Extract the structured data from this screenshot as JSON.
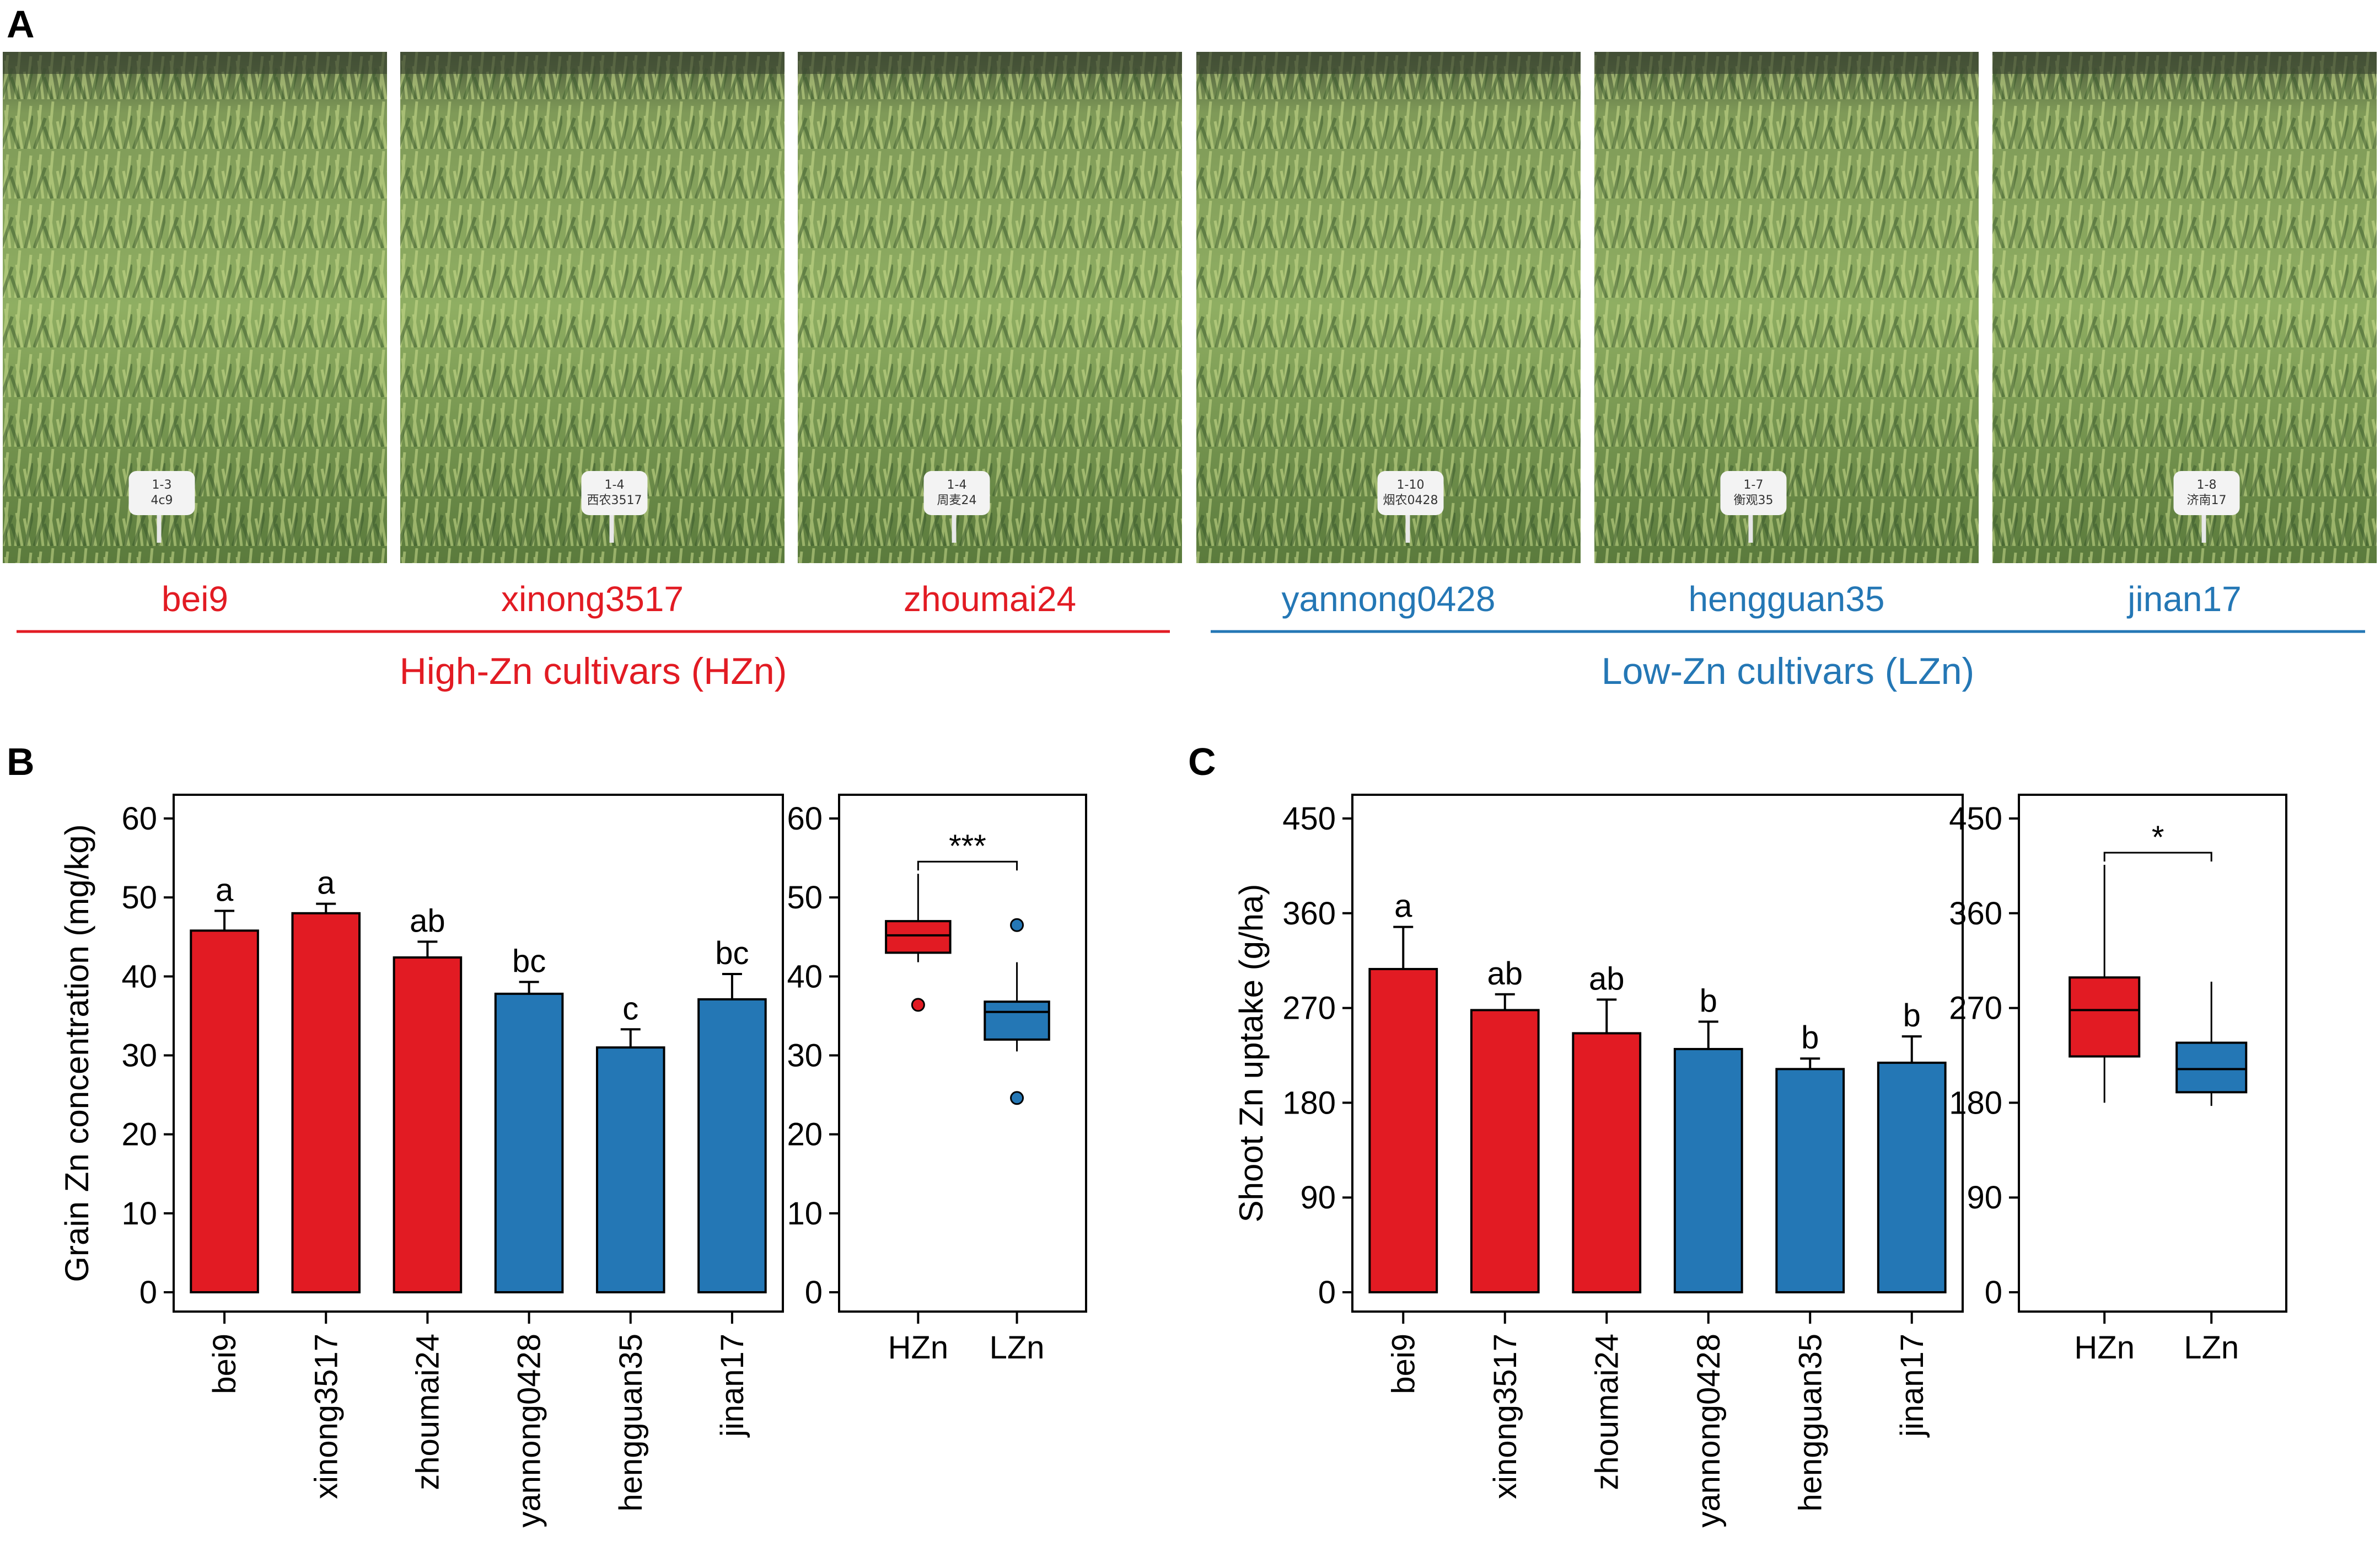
{
  "panels": {
    "A": "A",
    "B": "B",
    "C": "C"
  },
  "colors": {
    "hzn": "#e21b23",
    "lzn": "#2477b5",
    "axis": "#000000"
  },
  "photos": [
    {
      "cultivar": "bei9",
      "group": "hzn",
      "tag_lines": [
        "1-3",
        "4c9"
      ]
    },
    {
      "cultivar": "xinong3517",
      "group": "hzn",
      "tag_lines": [
        "1-4",
        "西农3517"
      ]
    },
    {
      "cultivar": "zhoumai24",
      "group": "hzn",
      "tag_lines": [
        "1-4",
        "周麦24"
      ]
    },
    {
      "cultivar": "yannong0428",
      "group": "lzn",
      "tag_lines": [
        "1-10",
        "烟农0428"
      ]
    },
    {
      "cultivar": "hengguan35",
      "group": "lzn",
      "tag_lines": [
        "1-7",
        "衡观35"
      ]
    },
    {
      "cultivar": "jinan17",
      "group": "lzn",
      "tag_lines": [
        "1-8",
        "济南17"
      ]
    }
  ],
  "groups": {
    "hzn_label": "High-Zn cultivars (HZn)",
    "lzn_label": "Low-Zn cultivars (LZn)"
  },
  "chart_data": [
    {
      "panel": "B",
      "type": "bar",
      "ylabel": "Grain Zn concentration (mg/kg)",
      "ylim": [
        0,
        60
      ],
      "yticks": [
        0,
        10,
        20,
        30,
        40,
        50,
        60
      ],
      "categories": [
        "bei9",
        "xinong3517",
        "zhoumai24",
        "yannong0428",
        "hengguan35",
        "jinan17"
      ],
      "values": [
        45.8,
        48.0,
        42.4,
        37.8,
        31.0,
        37.1
      ],
      "errors": [
        2.5,
        1.2,
        2.0,
        1.5,
        2.3,
        3.2
      ],
      "letters": [
        "a",
        "a",
        "ab",
        "bc",
        "c",
        "bc"
      ],
      "groups": [
        "hzn",
        "hzn",
        "hzn",
        "lzn",
        "lzn",
        "lzn"
      ]
    },
    {
      "panel": "B",
      "type": "box",
      "ylim": [
        0,
        60
      ],
      "yticks": [
        0,
        10,
        20,
        30,
        40,
        50,
        60
      ],
      "categories": [
        "HZn",
        "LZn"
      ],
      "boxes": [
        {
          "group": "hzn",
          "whisker_low": 41.8,
          "q1": 43.0,
          "median": 45.2,
          "q3": 47.0,
          "whisker_high": 53.0,
          "outliers": [
            36.4
          ]
        },
        {
          "group": "lzn",
          "whisker_low": 30.5,
          "q1": 32.0,
          "median": 35.5,
          "q3": 36.8,
          "whisker_high": 41.8,
          "outliers": [
            46.5,
            24.6
          ]
        }
      ],
      "significance": "***"
    },
    {
      "panel": "C",
      "type": "bar",
      "ylabel": "Shoot Zn uptake (g/ha)",
      "ylim": [
        0,
        450
      ],
      "yticks": [
        0,
        90,
        180,
        270,
        360,
        450
      ],
      "categories": [
        "bei9",
        "xinong3517",
        "zhoumai24",
        "yannong0428",
        "hengguan35",
        "jinan17"
      ],
      "values": [
        307,
        268,
        246,
        231,
        212,
        218
      ],
      "errors": [
        40,
        15,
        32,
        26,
        10,
        25
      ],
      "letters": [
        "a",
        "ab",
        "ab",
        "b",
        "b",
        "b"
      ],
      "groups": [
        "hzn",
        "hzn",
        "hzn",
        "lzn",
        "lzn",
        "lzn"
      ]
    },
    {
      "panel": "C",
      "type": "box",
      "ylim": [
        0,
        450
      ],
      "yticks": [
        0,
        90,
        180,
        270,
        360,
        450
      ],
      "categories": [
        "HZn",
        "LZn"
      ],
      "boxes": [
        {
          "group": "hzn",
          "whisker_low": 180,
          "q1": 224,
          "median": 268,
          "q3": 299,
          "whisker_high": 406,
          "outliers": []
        },
        {
          "group": "lzn",
          "whisker_low": 177,
          "q1": 190,
          "median": 212,
          "q3": 237,
          "whisker_high": 295,
          "outliers": []
        }
      ],
      "significance": "*"
    }
  ]
}
